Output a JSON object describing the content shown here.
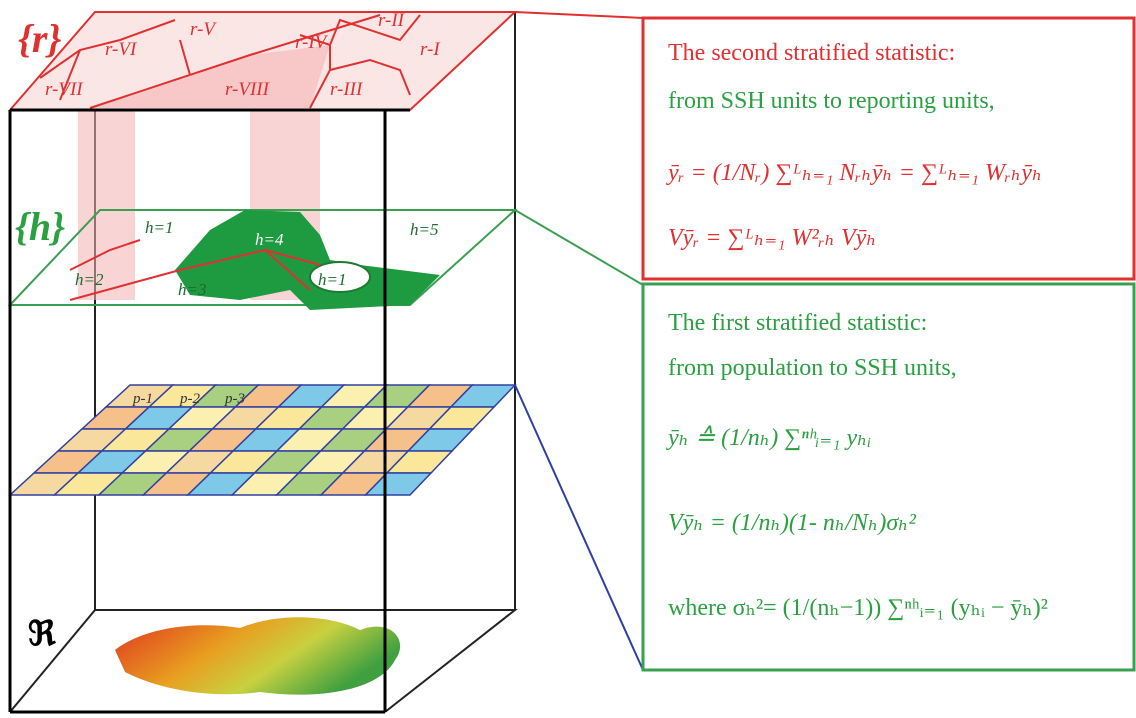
{
  "labels": {
    "r_set": "{r}",
    "h_set": "{h}",
    "fraktur": "ℜ"
  },
  "regions": [
    "r-VII",
    "r-VI",
    "r-V",
    "r-IV",
    "r-II",
    "r-I",
    "r-III",
    "r-VIII"
  ],
  "strata": [
    "h=1",
    "h=4",
    "h=5",
    "h=2",
    "h=3",
    "h=1"
  ],
  "pixels": [
    "p-1",
    "p-2",
    "p-3"
  ],
  "second_box": {
    "lines": [
      "The second stratified statistic:",
      "from SSH units to reporting units,"
    ],
    "formulas": [
      "ȳᵣ  =  (1/Nᵣ) ∑ᴸₕ₌₁ Nᵣₕȳₕ =  ∑ᴸₕ₌₁ Wᵣₕȳₕ",
      "Vȳᵣ  =  ∑ᴸₕ₌₁ W²ᵣₕ Vȳₕ"
    ]
  },
  "first_box": {
    "lines": [
      "The first stratified statistic:",
      "from population to SSH units,"
    ],
    "formulas": [
      "ȳₕ  ≙  (1/nₕ) ∑ⁿʰᵢ₌₁ yₕᵢ",
      "Vȳₕ  =  (1/nₕ)(1- nₕ/Nₕ)σₕ²",
      "where  σₕ²=  (1/(nₕ−1)) ∑ⁿʰᵢ₌₁ (yₕᵢ − ȳₕ)²"
    ]
  }
}
